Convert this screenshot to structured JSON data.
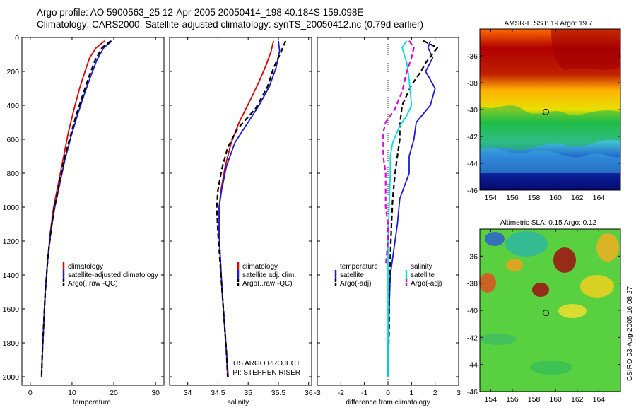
{
  "header": {
    "title_line1": "Argo profile: AO 5900563_25 12-Apr-2005 20050414_198 40.184S 159.098E",
    "title_line2": "Climatology: CARS2000. Satellite-adjusted climatology: synTS_20050412.nc (0.79d earlier)"
  },
  "footer": {
    "side_stamp": "CSIRO 03-Aug-2005 16:08:27"
  },
  "colors": {
    "climatology": "#e00000",
    "satellite": "#1a1ad8",
    "argo": "#000000",
    "sal_satellite": "#00e0e0",
    "sal_argo": "#e000e0"
  },
  "chart_data": [
    {
      "type": "line",
      "id": "temperature",
      "xlabel": "temperature",
      "ylabel": "",
      "xlim": [
        -2,
        32
      ],
      "ylim": [
        2050,
        0
      ],
      "xticks": [
        0,
        10,
        20,
        30
      ],
      "yticks": [
        0,
        200,
        400,
        600,
        800,
        1000,
        1200,
        1400,
        1600,
        1800,
        2000
      ],
      "series": [
        {
          "name": "climatology",
          "style": "solid",
          "color": "#e00000",
          "points": [
            [
              17.8,
              20
            ],
            [
              15.8,
              60
            ],
            [
              14.2,
              120
            ],
            [
              13.1,
              200
            ],
            [
              11.8,
              300
            ],
            [
              10.5,
              420
            ],
            [
              9.2,
              550
            ],
            [
              8.0,
              700
            ],
            [
              6.8,
              850
            ],
            [
              5.6,
              1000
            ],
            [
              4.8,
              1150
            ],
            [
              4.2,
              1300
            ],
            [
              3.6,
              1500
            ],
            [
              3.2,
              1700
            ],
            [
              2.9,
              1850
            ],
            [
              2.7,
              2000
            ]
          ]
        },
        {
          "name": "satellite-adjusted climatology",
          "style": "solid",
          "color": "#1a1ad8",
          "points": [
            [
              19.6,
              20
            ],
            [
              17.6,
              60
            ],
            [
              16.0,
              130
            ],
            [
              14.6,
              220
            ],
            [
              13.0,
              330
            ],
            [
              11.4,
              450
            ],
            [
              9.8,
              580
            ],
            [
              8.3,
              720
            ],
            [
              7.0,
              870
            ],
            [
              5.8,
              1010
            ],
            [
              4.9,
              1150
            ],
            [
              4.2,
              1300
            ],
            [
              3.6,
              1500
            ],
            [
              3.2,
              1700
            ],
            [
              2.9,
              1850
            ],
            [
              2.7,
              2000
            ]
          ]
        },
        {
          "name": "Argo(..raw -QC)",
          "style": "dash",
          "color": "#000000",
          "points": [
            [
              19.3,
              20
            ],
            [
              17.2,
              60
            ],
            [
              15.6,
              130
            ],
            [
              14.2,
              220
            ],
            [
              12.7,
              330
            ],
            [
              11.1,
              450
            ],
            [
              9.6,
              580
            ],
            [
              8.1,
              720
            ],
            [
              6.9,
              870
            ],
            [
              5.7,
              1010
            ],
            [
              4.9,
              1150
            ],
            [
              4.2,
              1300
            ],
            [
              3.6,
              1500
            ],
            [
              3.2,
              1700
            ],
            [
              2.9,
              1850
            ],
            [
              2.7,
              2000
            ]
          ]
        }
      ],
      "legend": {
        "placement": "lower-right",
        "entries": [
          "climatology",
          "satellite-adjusted climatology",
          "Argo(..raw -QC)"
        ]
      }
    },
    {
      "type": "line",
      "id": "salinity",
      "xlabel": "salinity",
      "ylabel": "",
      "xlim": [
        33.7,
        36.05
      ],
      "ylim": [
        2050,
        0
      ],
      "xticks": [
        34,
        34.5,
        35,
        35.5,
        36
      ],
      "yticks": [],
      "series": [
        {
          "name": "climatology",
          "style": "solid",
          "color": "#e00000",
          "points": [
            [
              35.42,
              20
            ],
            [
              35.38,
              80
            ],
            [
              35.3,
              160
            ],
            [
              35.18,
              260
            ],
            [
              35.02,
              380
            ],
            [
              34.85,
              500
            ],
            [
              34.72,
              620
            ],
            [
              34.62,
              760
            ],
            [
              34.55,
              900
            ],
            [
              34.52,
              1000
            ],
            [
              34.52,
              1150
            ],
            [
              34.54,
              1300
            ],
            [
              34.57,
              1500
            ],
            [
              34.61,
              1700
            ],
            [
              34.64,
              1850
            ],
            [
              34.66,
              2000
            ]
          ]
        },
        {
          "name": "satellite adj. clim.",
          "style": "solid",
          "color": "#1a1ad8",
          "points": [
            [
              35.5,
              20
            ],
            [
              35.52,
              80
            ],
            [
              35.46,
              180
            ],
            [
              35.35,
              290
            ],
            [
              35.18,
              400
            ],
            [
              34.98,
              510
            ],
            [
              34.78,
              620
            ],
            [
              34.64,
              760
            ],
            [
              34.56,
              900
            ],
            [
              34.52,
              1000
            ],
            [
              34.52,
              1150
            ],
            [
              34.54,
              1300
            ],
            [
              34.57,
              1500
            ],
            [
              34.61,
              1700
            ],
            [
              34.64,
              1850
            ],
            [
              34.67,
              2000
            ]
          ]
        },
        {
          "name": "Argo(..raw -QC)",
          "style": "dash",
          "color": "#000000",
          "points": [
            [
              35.62,
              20
            ],
            [
              35.55,
              80
            ],
            [
              35.42,
              180
            ],
            [
              35.32,
              290
            ],
            [
              35.12,
              420
            ],
            [
              34.82,
              540
            ],
            [
              34.66,
              650
            ],
            [
              34.56,
              780
            ],
            [
              34.5,
              900
            ],
            [
              34.48,
              1000
            ],
            [
              34.5,
              1150
            ],
            [
              34.53,
              1300
            ],
            [
              34.57,
              1500
            ],
            [
              34.61,
              1700
            ],
            [
              34.64,
              1850
            ],
            [
              34.66,
              2000
            ]
          ]
        }
      ],
      "legend": {
        "placement": "lower-right",
        "entries": [
          "climatology",
          "satellite adj. clim.",
          "Argo(..raw -QC)"
        ]
      },
      "annotation_lines": [
        "US ARGO PROJECT",
        "PI: STEPHEN RISER"
      ]
    },
    {
      "type": "line",
      "id": "difference",
      "xlabel": "difference from climatology",
      "ylabel": "",
      "xlim": [
        -3,
        3
      ],
      "ylim": [
        2050,
        0
      ],
      "xticks": [
        -3,
        -2,
        -1,
        0,
        1,
        2,
        3
      ],
      "yticks": [],
      "zero_line": "dotted",
      "series": [
        {
          "name": "temperature satellite",
          "style": "solid",
          "color": "#1a1ad8",
          "points": [
            [
              1.8,
              20
            ],
            [
              1.7,
              60
            ],
            [
              1.9,
              120
            ],
            [
              1.6,
              200
            ],
            [
              2.0,
              300
            ],
            [
              1.8,
              400
            ],
            [
              1.2,
              500
            ],
            [
              1.1,
              600
            ],
            [
              0.9,
              700
            ],
            [
              0.9,
              800
            ],
            [
              0.5,
              950
            ],
            [
              0.4,
              1100
            ],
            [
              0.3,
              1200
            ],
            [
              0.1,
              1400
            ],
            [
              0.05,
              1600
            ],
            [
              0.0,
              1800
            ],
            [
              0.0,
              2000
            ]
          ]
        },
        {
          "name": "temperature Argo(-adj)",
          "style": "dash",
          "color": "#000000",
          "points": [
            [
              1.5,
              20
            ],
            [
              2.1,
              60
            ],
            [
              1.6,
              150
            ],
            [
              1.4,
              200
            ],
            [
              1.0,
              280
            ],
            [
              0.6,
              400
            ],
            [
              0.5,
              520
            ],
            [
              0.5,
              600
            ],
            [
              0.4,
              700
            ],
            [
              0.3,
              800
            ],
            [
              0.2,
              950
            ],
            [
              0.15,
              1100
            ],
            [
              0.1,
              1300
            ],
            [
              0.05,
              1500
            ],
            [
              0.05,
              1700
            ],
            [
              0.0,
              2000
            ]
          ]
        },
        {
          "name": "salinity satellite",
          "style": "solid",
          "color": "#00e0e0",
          "points": [
            [
              0.8,
              20
            ],
            [
              0.6,
              60
            ],
            [
              0.8,
              150
            ],
            [
              0.9,
              250
            ],
            [
              1.0,
              400
            ],
            [
              0.8,
              460
            ],
            [
              0.5,
              520
            ],
            [
              0.2,
              620
            ],
            [
              0.1,
              700
            ],
            [
              0.1,
              800
            ],
            [
              0.05,
              1000
            ],
            [
              0.0,
              1200
            ],
            [
              0.0,
              1500
            ],
            [
              0.0,
              1800
            ],
            [
              0.0,
              2000
            ]
          ]
        },
        {
          "name": "salinity Argo(-adj)",
          "style": "dash",
          "color": "#e000e0",
          "points": [
            [
              0.9,
              20
            ],
            [
              1.1,
              60
            ],
            [
              1.0,
              120
            ],
            [
              0.8,
              200
            ],
            [
              0.6,
              320
            ],
            [
              0.3,
              420
            ],
            [
              -0.1,
              500
            ],
            [
              -0.2,
              560
            ],
            [
              -0.2,
              700
            ],
            [
              -0.1,
              800
            ],
            [
              -0.1,
              900
            ],
            [
              -0.1,
              1000
            ],
            [
              0.0,
              1100
            ],
            [
              0.0,
              1200
            ],
            [
              -0.1,
              1350
            ]
          ]
        }
      ],
      "legend_left": {
        "title": "temperature",
        "entries": [
          "satellite",
          "Argo(-adj)"
        ]
      },
      "legend_right": {
        "title": "salinity",
        "entries": [
          "satellite",
          "Argo(-adj)"
        ]
      }
    },
    {
      "type": "heatmap",
      "id": "sst_map",
      "title": "AMSR-E SST: 19 Argo: 19.7",
      "xlim": [
        153,
        166
      ],
      "ylim": [
        -46,
        -34
      ],
      "xticks": [
        154,
        156,
        158,
        160,
        162,
        164
      ],
      "yticks": [
        -36,
        -38,
        -40,
        -42,
        -44,
        -46
      ],
      "marker": {
        "lon": 159.1,
        "lat": -40.18
      }
    },
    {
      "type": "heatmap",
      "id": "sla_map",
      "title": "Altimetric SLA: 0.15 Argo: 0.12",
      "xlim": [
        153,
        166
      ],
      "ylim": [
        -46,
        -34
      ],
      "xticks": [
        154,
        156,
        158,
        160,
        162,
        164
      ],
      "yticks": [
        -36,
        -38,
        -40,
        -42,
        -44,
        -46
      ],
      "marker": {
        "lon": 159.1,
        "lat": -40.18
      }
    }
  ]
}
